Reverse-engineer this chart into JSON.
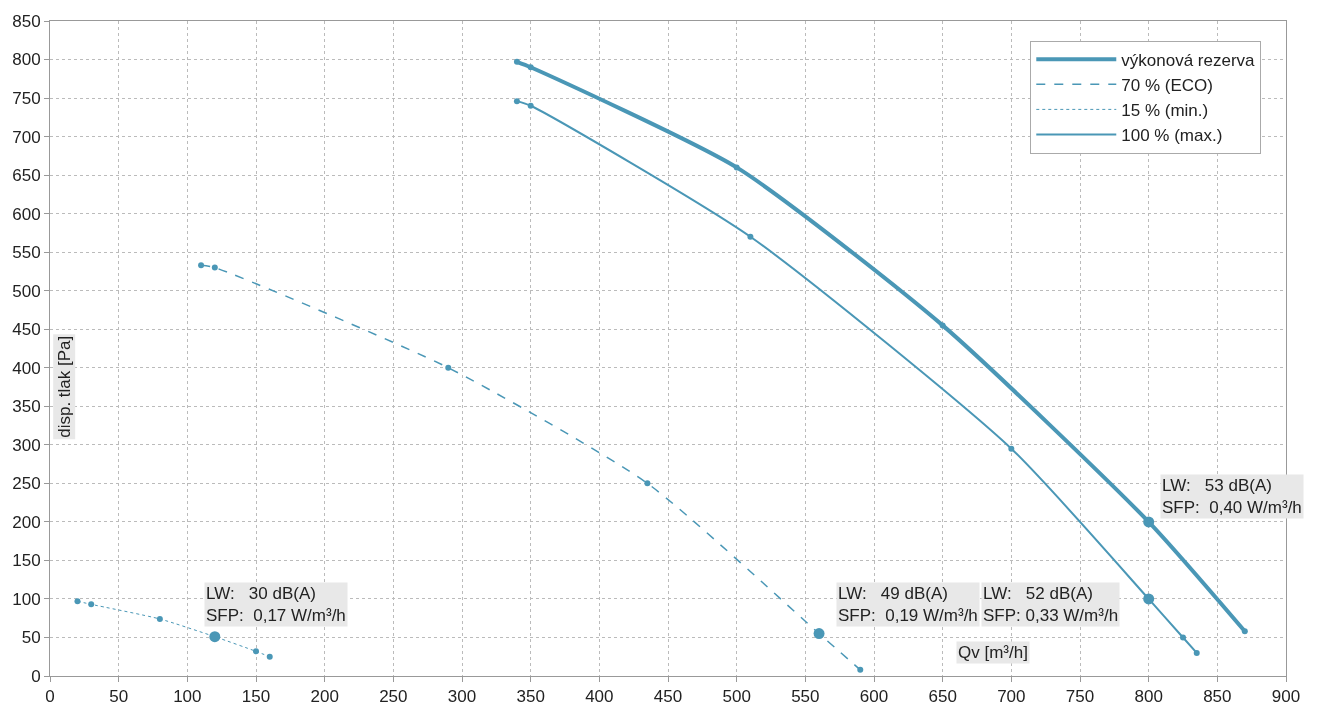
{
  "chart_data": {
    "type": "line",
    "xlabel": "Qv [m³/h]",
    "ylabel": "disp. tlak [Pa]",
    "xlim": [
      0,
      900
    ],
    "xticks": [
      0,
      50,
      100,
      150,
      200,
      250,
      300,
      350,
      400,
      450,
      500,
      550,
      600,
      650,
      700,
      750,
      800,
      850,
      900
    ],
    "ylim": [
      0,
      850
    ],
    "yticks": [
      0,
      50,
      100,
      150,
      200,
      250,
      300,
      350,
      400,
      450,
      500,
      550,
      600,
      650,
      700,
      750,
      800,
      850
    ],
    "grid": true,
    "legend": "top right",
    "marker": "circle",
    "series": [
      {
        "name": "výkonová rezerva",
        "color": "#4a97b6",
        "line_style": "solid",
        "x": [
          340,
          350,
          500,
          650,
          800,
          870
        ],
        "values": [
          797,
          790,
          660,
          455,
          200,
          58
        ]
      },
      {
        "name": "70 % (ECO)",
        "color": "#4a97b6",
        "line_style": "dashed",
        "x": [
          110,
          120,
          290,
          435,
          560,
          590
        ],
        "values": [
          533,
          530,
          400,
          250,
          55,
          8
        ]
      },
      {
        "name": "15 % (min.)",
        "color": "#4a97b6",
        "line_style": "dotted",
        "x": [
          20,
          30,
          80,
          120,
          150,
          160
        ],
        "values": [
          97,
          93,
          74,
          51,
          32,
          25
        ]
      },
      {
        "name": "100 % (max.)",
        "color": "#4a97b6",
        "line_style": "solid",
        "x": [
          340,
          350,
          510,
          700,
          800,
          825,
          835
        ],
        "values": [
          746,
          740,
          570,
          295,
          100,
          50,
          30
        ]
      },
      {
        "type": "scatter",
        "color": "#4a97b6",
        "marker": "circle",
        "x": [
          120,
          560,
          800,
          800
        ],
        "values": [
          51,
          55,
          100,
          200
        ]
      }
    ],
    "annotations": [
      "LW:   30 dB(A)\nSFP:  0,17 W/m³/h",
      "LW:   49 dB(A)\nSFP:  0,19 W/m³/h",
      "LW:   52 dB(A)\nSFP: 0,33 W/m³/h",
      "LW:   53 dB(A)\nSFP:  0,40 W/m³/h"
    ]
  }
}
